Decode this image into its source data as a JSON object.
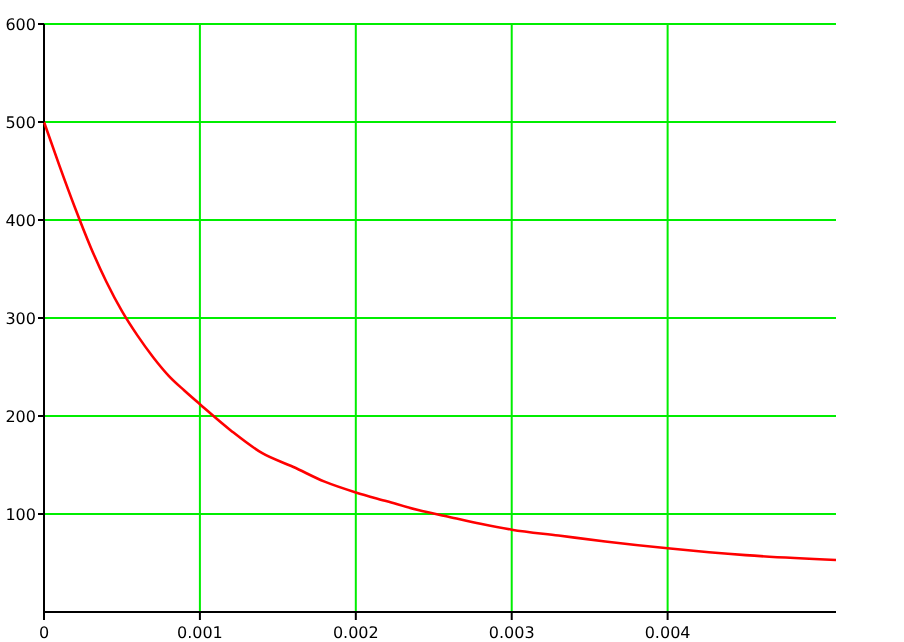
{
  "chart_data": {
    "type": "line",
    "x": [
      0,
      0.0001,
      0.0002,
      0.0003,
      0.0004,
      0.0005,
      0.0006,
      0.0007,
      0.0008,
      0.0009,
      0.001,
      0.0012,
      0.0014,
      0.0016,
      0.0018,
      0.002,
      0.0022,
      0.0024,
      0.0026,
      0.0028,
      0.003,
      0.0033,
      0.0036,
      0.004,
      0.0045,
      0.00508
    ],
    "series": [
      {
        "color": "#ff0000",
        "values": [
          500,
          455,
          412,
          372,
          337,
          307,
          282,
          260,
          241,
          226,
          212,
          185,
          162,
          148,
          133,
          122,
          113,
          104,
          97,
          90,
          84,
          78,
          72,
          65,
          58,
          53
        ]
      }
    ],
    "xlim": [
      0,
      0.00508
    ],
    "xticks": [
      0,
      0.001,
      0.002,
      0.003,
      0.004
    ],
    "ylim": [
      0,
      600
    ],
    "yticks": [
      100,
      200,
      300,
      400,
      500,
      600
    ],
    "grid": true,
    "marker": "none",
    "line_style": "solid"
  }
}
